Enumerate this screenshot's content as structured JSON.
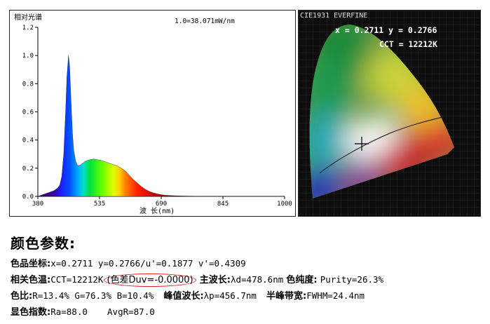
{
  "chart_data": [
    {
      "type": "area",
      "title": "相对光谱",
      "annotation": "1.0=38.071mW/nm",
      "xlabel": "波 长(nm)",
      "ylabel": "",
      "xlim": [
        380,
        1000
      ],
      "ylim": [
        0,
        1.2
      ],
      "xticks": [
        "380",
        "535",
        "690",
        "845",
        "1000"
      ],
      "yticks": [
        "0.0",
        "0.2",
        "0.4",
        "0.6",
        "0.8",
        "1.0",
        "1.2"
      ],
      "fill": "spectral-gradient",
      "x": [
        380,
        390,
        400,
        410,
        420,
        430,
        435,
        440,
        445,
        450,
        453,
        457,
        460,
        463,
        467,
        470,
        475,
        480,
        485,
        490,
        500,
        510,
        520,
        530,
        540,
        550,
        560,
        570,
        580,
        590,
        600,
        610,
        620,
        630,
        640,
        650,
        660,
        670,
        680,
        690,
        700,
        720,
        740,
        760,
        780,
        800,
        850,
        900,
        950,
        1000
      ],
      "y": [
        0.0,
        0.01,
        0.02,
        0.03,
        0.04,
        0.06,
        0.08,
        0.14,
        0.3,
        0.62,
        0.85,
        1.0,
        0.92,
        0.7,
        0.45,
        0.33,
        0.25,
        0.22,
        0.22,
        0.23,
        0.25,
        0.26,
        0.265,
        0.26,
        0.255,
        0.245,
        0.235,
        0.225,
        0.215,
        0.2,
        0.18,
        0.15,
        0.12,
        0.095,
        0.07,
        0.05,
        0.035,
        0.025,
        0.018,
        0.012,
        0.008,
        0.005,
        0.003,
        0.002,
        0.001,
        0.0,
        0.0,
        0.0,
        0.0,
        0.0
      ]
    },
    {
      "type": "scatter",
      "title": "CIE1931 EVERFINE",
      "readout_xy": "x = 0.2711 y = 0.2766",
      "readout_cct": "CCT = 12212K",
      "point": {
        "x": 0.2711,
        "y": 0.2766
      },
      "xlim": [
        0,
        0.8
      ],
      "ylim": [
        0,
        0.9
      ]
    }
  ],
  "params": {
    "title": "颜色参数:",
    "line1": {
      "k1": "色品坐标:",
      "v1": "x=0.2711  y=0.2766/u'=0.1877 v'=0.4309"
    },
    "line2": {
      "k1": "相关色温:",
      "v1": "CCT=12212K",
      "v2": "(色差Duv=-0.0000)",
      "k2": "主波长:",
      "v3": "λd=478.6nm",
      "k3": "色纯度:",
      "v4": "Purity=26.3%"
    },
    "line3": {
      "k1": "色比:",
      "v1": "R=13.4% G=76.3% B=10.4%",
      "k2": "峰值波长:",
      "v2": "λp=456.7nm",
      "k3": "半峰带宽:",
      "v3": "FWHM=24.4nm"
    },
    "line4": {
      "k1": "显色指数:",
      "v1": "Ra=88.0",
      "v2": "AvgR=87.0"
    }
  }
}
